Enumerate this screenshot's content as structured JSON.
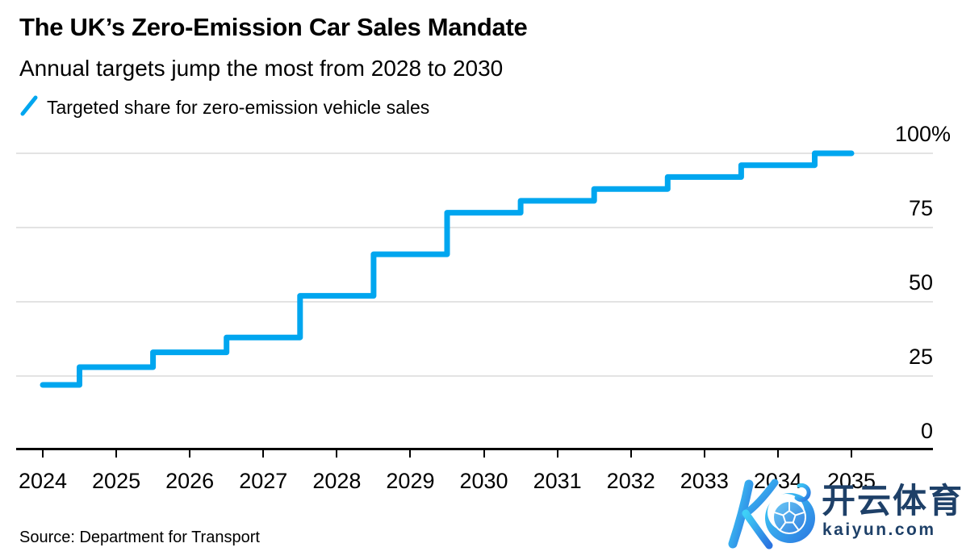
{
  "header": {
    "title": "The UK’s Zero-Emission Car Sales Mandate",
    "subtitle": "Annual targets jump the most from 2028 to 2030"
  },
  "legend": {
    "label": "Targeted share for zero-emission vehicle sales",
    "icon": "blue-slash-line-icon",
    "line_color": "#00a6ef"
  },
  "chart_data": {
    "type": "line",
    "subtype": "step",
    "title": "The UK’s Zero-Emission Car Sales Mandate",
    "x": [
      2024,
      2025,
      2026,
      2027,
      2028,
      2029,
      2030,
      2031,
      2032,
      2033,
      2034,
      2035
    ],
    "series": [
      {
        "name": "Targeted share for zero-emission vehicle sales",
        "values": [
          22,
          28,
          33,
          38,
          52,
          66,
          80,
          84,
          88,
          92,
          96,
          100
        ]
      }
    ],
    "unit": "%",
    "ylim": [
      0,
      100
    ],
    "ytick_values": [
      100,
      75,
      50,
      25,
      0
    ],
    "ytick_labels": [
      "100%",
      "75",
      "50",
      "25",
      "0"
    ],
    "xtick_labels": [
      "2024",
      "2025",
      "2026",
      "2027",
      "2028",
      "2029",
      "2030",
      "2031",
      "2032",
      "2033",
      "2034",
      "2035"
    ],
    "grid": "horizontal",
    "legend_position": "top-left",
    "line_color": "#00a6ef",
    "gridline_color": "#e3e3e3",
    "axis_color": "#000000"
  },
  "footer": {
    "source": "Source: Department for Transport"
  },
  "watermark": {
    "logo_icon": "kaiyun-k-soccer-ball-logo",
    "brand_cn": "开云体育",
    "brand_url": "kaiyun.com",
    "text_color": "#1e4068",
    "logo_gradient": [
      "#3fd0f7",
      "#2b74e0"
    ]
  }
}
